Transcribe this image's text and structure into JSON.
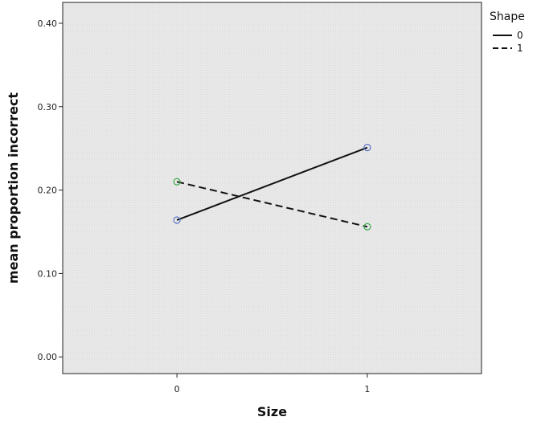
{
  "chart_data": {
    "type": "line",
    "xlabel": "Size",
    "ylabel": "mean proportion incorrect",
    "x_categories": [
      "0",
      "1"
    ],
    "x_values": [
      0,
      1
    ],
    "xlim": [
      -0.6,
      1.6
    ],
    "ylim": [
      -0.02,
      0.425
    ],
    "y_ticks": [
      0.0,
      0.1,
      0.2,
      0.3,
      0.4
    ],
    "y_tick_labels": [
      "0.00",
      "0.10",
      "0.20",
      "0.30",
      "0.40"
    ],
    "grid": false,
    "background_color": "#e9e9e9",
    "legend": {
      "title": "Shape",
      "position": "top-right, outside plot"
    },
    "series": [
      {
        "name": "0",
        "values": [
          0.164,
          0.251
        ],
        "line_style": "solid",
        "marker_color": "#5a73c8"
      },
      {
        "name": "1",
        "values": [
          0.21,
          0.156
        ],
        "line_style": "dashed",
        "marker_color": "#3aa84a"
      }
    ]
  }
}
